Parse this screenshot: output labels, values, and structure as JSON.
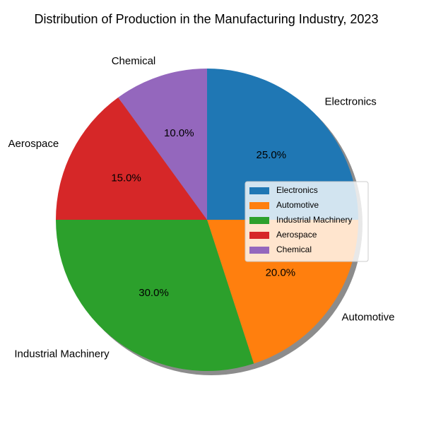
{
  "chart_data": {
    "type": "pie",
    "title": "Distribution of Production in the Manufacturing Industry, 2023",
    "start_angle_deg": 90,
    "direction": "clockwise",
    "shadow": true,
    "legend_position": "center-right",
    "slices": [
      {
        "label": "Electronics",
        "value": 25.0,
        "pct_label": "25.0%",
        "color": "#1f77b4"
      },
      {
        "label": "Automotive",
        "value": 20.0,
        "pct_label": "20.0%",
        "color": "#ff7f0e"
      },
      {
        "label": "Industrial Machinery",
        "value": 30.0,
        "pct_label": "30.0%",
        "color": "#2ca02c"
      },
      {
        "label": "Aerospace",
        "value": 15.0,
        "pct_label": "15.0%",
        "color": "#d62728"
      },
      {
        "label": "Chemical",
        "value": 10.0,
        "pct_label": "10.0%",
        "color": "#9467bd"
      }
    ]
  }
}
